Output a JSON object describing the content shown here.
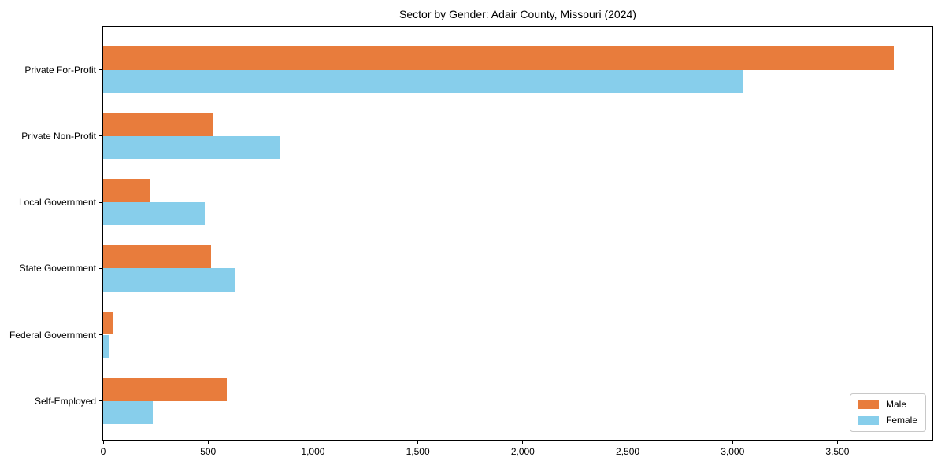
{
  "page": {
    "title": "Sector by Gender: Adair County, Missouri (2024)"
  },
  "chart_data": {
    "type": "bar",
    "orientation": "horizontal",
    "title": "Sector by Gender: Adair County, Missouri (2024)",
    "categories": [
      "Private For-Profit",
      "Private Non-Profit",
      "Local Government",
      "State Government",
      "Federal Government",
      "Self-Employed"
    ],
    "series": [
      {
        "name": "Male",
        "color": "#e87c3c",
        "values": [
          3770,
          520,
          220,
          515,
          45,
          590
        ]
      },
      {
        "name": "Female",
        "color": "#87ceeb",
        "values": [
          3050,
          845,
          485,
          630,
          30,
          235
        ]
      }
    ],
    "xlabel": "",
    "ylabel": "",
    "xlim": [
      0,
      3960
    ],
    "xticks": [
      0,
      500,
      1000,
      1500,
      2000,
      2500,
      3000,
      3500
    ],
    "xtick_labels": [
      "0",
      "500",
      "1,000",
      "1,500",
      "2,000",
      "2,500",
      "3,000",
      "3,500"
    ],
    "grid": false,
    "legend": {
      "position": "lower right",
      "labels": [
        "Male",
        "Female"
      ]
    }
  }
}
